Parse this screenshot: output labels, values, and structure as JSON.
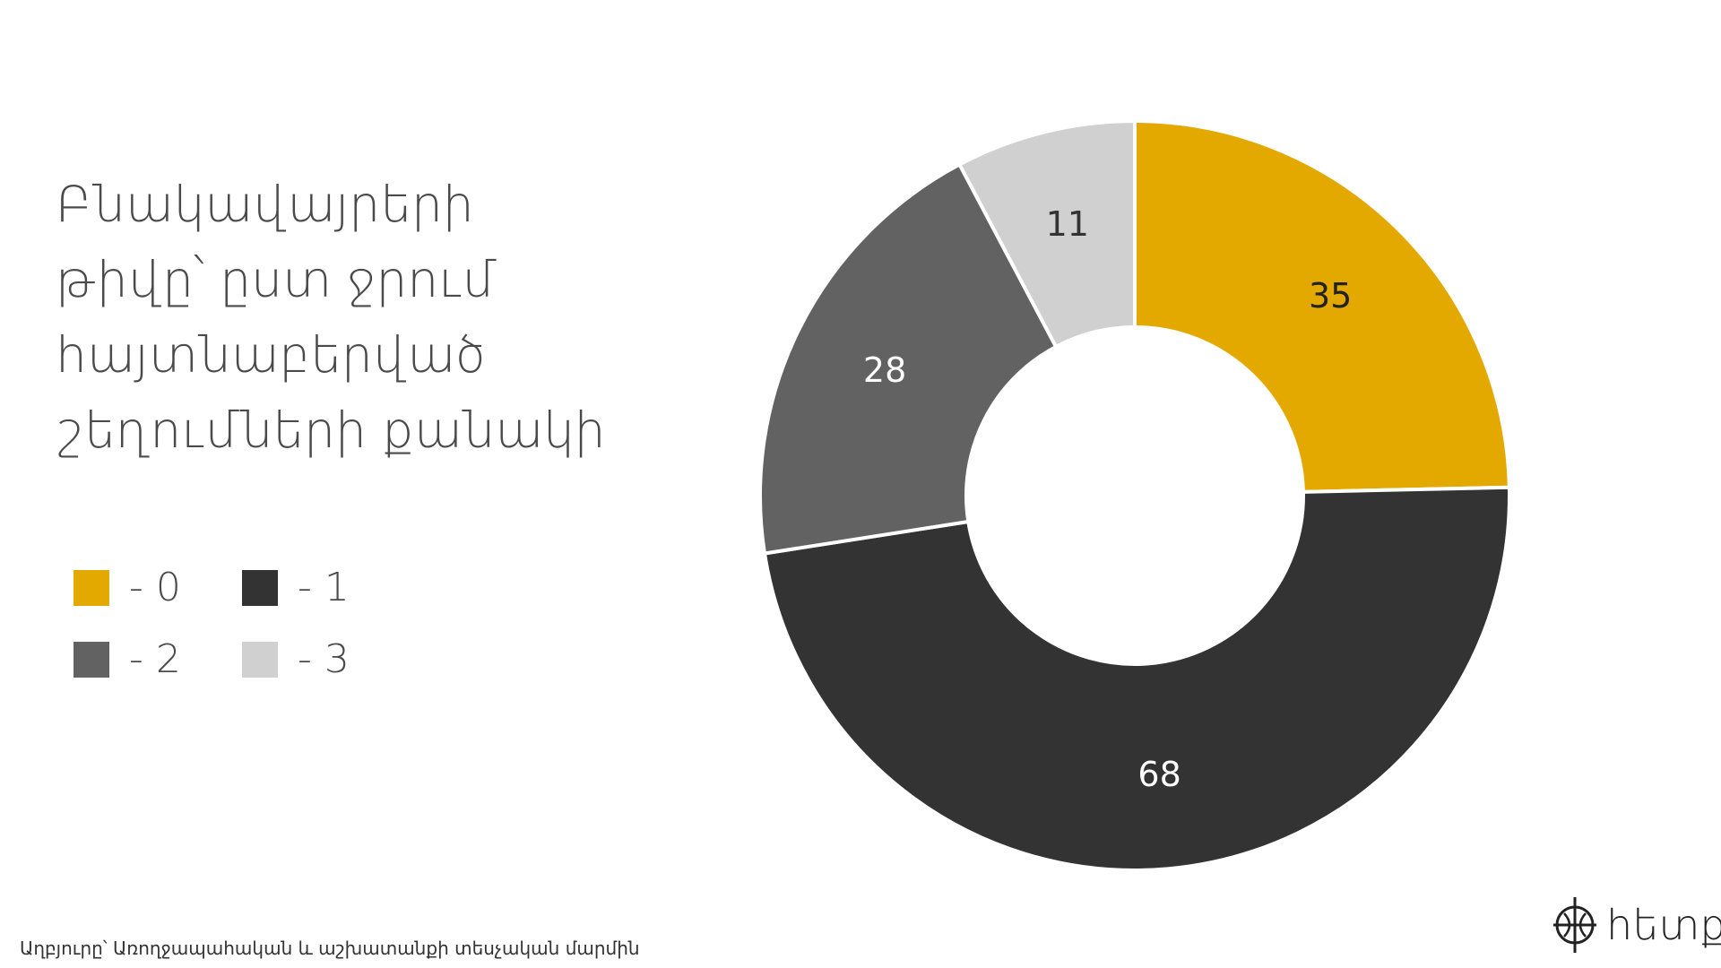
{
  "title_lines": [
    "Բնակավայրերի",
    "թիվը՝ ըստ ջրում",
    "հայտնաբերված",
    "շեղումների քանակի"
  ],
  "source": "Աղբյուրը՝ Առողջապահական և աշխատանքի տեսչական մարմին",
  "logo": {
    "name": "հետք",
    "icon": "crosshair-logo-icon"
  },
  "colors": {
    "s0": "#E3A900",
    "s1": "#333333",
    "s2": "#626262",
    "s3": "#D0D0D0"
  },
  "legend": [
    {
      "label": "- 0",
      "color": "#E3A900"
    },
    {
      "label": "- 1",
      "color": "#333333"
    },
    {
      "label": "- 2",
      "color": "#626262"
    },
    {
      "label": "- 3",
      "color": "#D0D0D0"
    }
  ],
  "chart_data": {
    "type": "pie",
    "variant": "donut",
    "categories": [
      "- 0",
      "- 1",
      "- 2",
      "- 3"
    ],
    "values": [
      35,
      68,
      28,
      11
    ],
    "colors": [
      "#E3A900",
      "#333333",
      "#626262",
      "#D0D0D0"
    ],
    "label_colors": [
      "#222222",
      "#ffffff",
      "#ffffff",
      "#333333"
    ],
    "start": "12 o'clock, clockwise",
    "legend_position": "left"
  }
}
